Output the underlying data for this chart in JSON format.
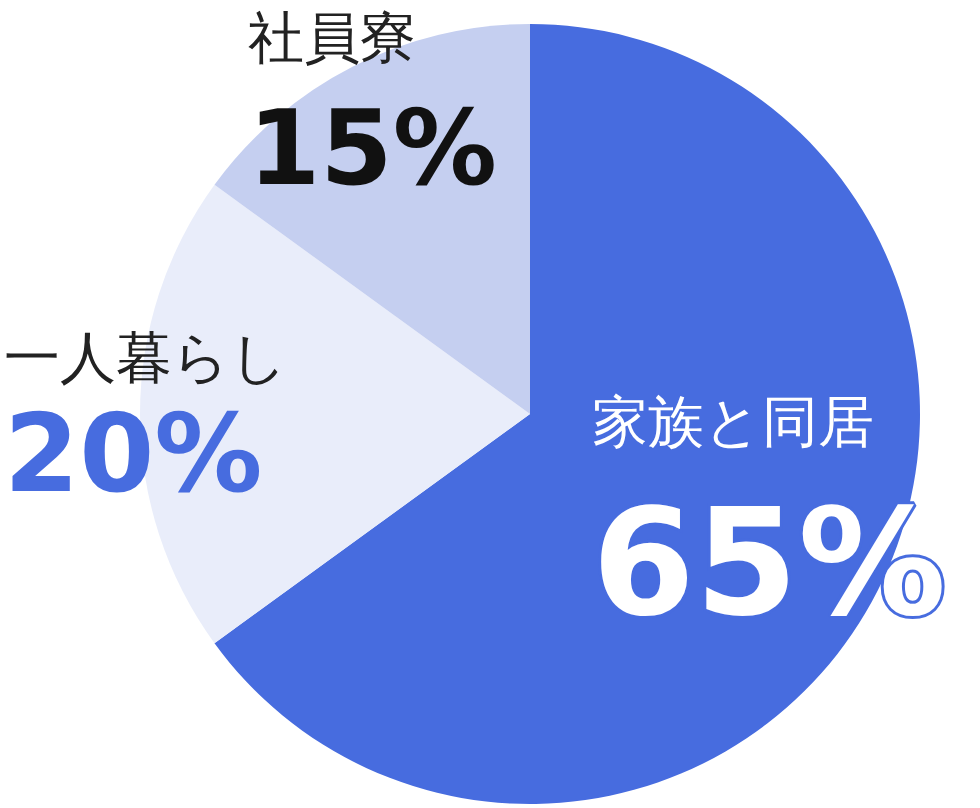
{
  "chart_data": {
    "type": "pie",
    "categories": [
      "家族と同居",
      "一人暮らし",
      "社員寮"
    ],
    "values": [
      65,
      20,
      15
    ],
    "colors": [
      "#476cdf",
      "#e9edfa",
      "#c5cff0"
    ],
    "value_labels": [
      "65%",
      "20%",
      "15%"
    ]
  }
}
